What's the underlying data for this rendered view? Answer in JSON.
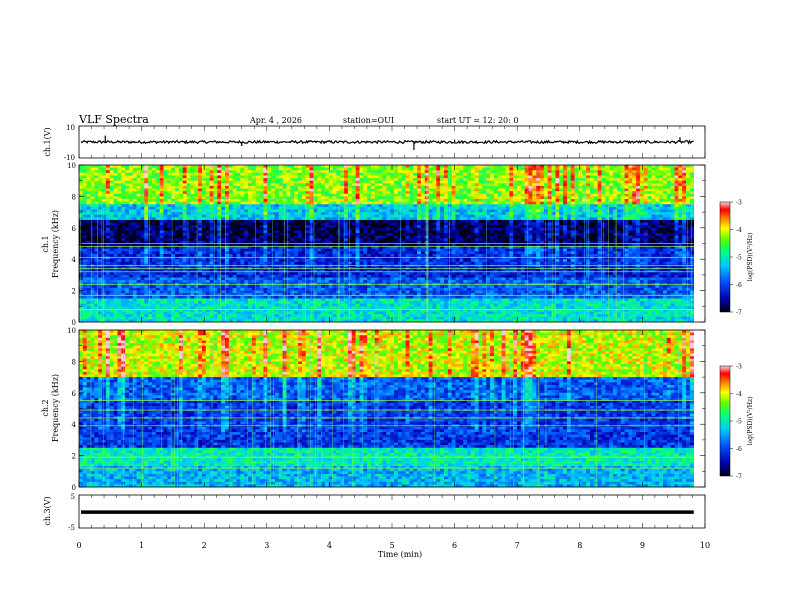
{
  "header": {
    "title": "VLF Spectra",
    "date": "Apr. 4 , 2026",
    "station": "station=OUI",
    "start_time": "start UT = 12: 20: 0"
  },
  "chart_data": [
    {
      "type": "line",
      "id": "ch1_waveform",
      "ylabel": "ch.1(V)",
      "ylim": [
        -10,
        10
      ],
      "y_tick_labels": [
        "10",
        "-10"
      ],
      "x_range": [
        0,
        10
      ],
      "baseline": 0,
      "noise_band": 0.8,
      "trace_end": 9.82,
      "spikes": [
        {
          "x": 0.42,
          "y": 4.0
        },
        {
          "x": 2.6,
          "y": -2.5
        },
        {
          "x": 5.35,
          "y": -5.0
        },
        {
          "x": 6.0,
          "y": 1.5
        },
        {
          "x": 9.6,
          "y": 3.0
        }
      ]
    },
    {
      "type": "heatmap",
      "id": "ch1_spectrogram",
      "ylabel": "ch.1",
      "ylabel2": "Frequency (kHz)",
      "ylim": [
        0,
        10
      ],
      "y_tick_labels": [
        "0",
        "2",
        "4",
        "6",
        "8",
        "10"
      ],
      "x_range": [
        0,
        9.82
      ],
      "colorbar": {
        "range": [
          -7,
          -3
        ],
        "tick_labels": [
          "-3",
          "-4",
          "-5",
          "-6",
          "-7"
        ],
        "label": "log(PSD)(V²/Hz)"
      },
      "bands": [
        {
          "fmin": 0,
          "fmax": 1.5,
          "level": -5.1
        },
        {
          "fmin": 1.5,
          "fmax": 2.8,
          "level": -5.9
        },
        {
          "fmin": 2.8,
          "fmax": 4.8,
          "level": -6.2
        },
        {
          "fmin": 4.8,
          "fmax": 6.5,
          "level": -6.8
        },
        {
          "fmin": 6.5,
          "fmax": 7.5,
          "level": -5.3
        },
        {
          "fmin": 7.5,
          "fmax": 10,
          "level": -4.3
        }
      ],
      "tones_khz": [
        0.8,
        1.7,
        2.4,
        3.2,
        3.4,
        3.6,
        4.1,
        4.8,
        5.0
      ]
    },
    {
      "type": "heatmap",
      "id": "ch2_spectrogram",
      "ylabel": "ch.2",
      "ylabel2": "Frequency (kHz)",
      "ylim": [
        0,
        10
      ],
      "y_tick_labels": [
        "0",
        "2",
        "4",
        "6",
        "8",
        "10"
      ],
      "x_range": [
        0,
        9.82
      ],
      "colorbar": {
        "range": [
          -7,
          -3
        ],
        "tick_labels": [
          "-3",
          "-4",
          "-5",
          "-6",
          "-7"
        ],
        "label": "log(PSD)(V²/Hz)"
      },
      "bands": [
        {
          "fmin": 0,
          "fmax": 1.4,
          "level": -5.4
        },
        {
          "fmin": 1.4,
          "fmax": 2.5,
          "level": -5.0
        },
        {
          "fmin": 2.5,
          "fmax": 5.5,
          "level": -6.1
        },
        {
          "fmin": 5.5,
          "fmax": 7.0,
          "level": -5.9
        },
        {
          "fmin": 7.0,
          "fmax": 10,
          "level": -4.1
        }
      ],
      "tones_khz": [
        1.2,
        1.9,
        3.9,
        4.4,
        4.9,
        5.5
      ]
    },
    {
      "type": "line",
      "id": "ch3_waveform",
      "ylabel": "ch.3(V)",
      "ylim": [
        -5,
        5
      ],
      "y_tick_labels": [
        "5",
        "-5"
      ],
      "x_range": [
        0,
        10
      ],
      "baseline": -0.2,
      "trace_end": 9.82
    }
  ],
  "x_axis": {
    "label": "Time (min)",
    "tick_labels": [
      "0",
      "1",
      "2",
      "3",
      "4",
      "5",
      "6",
      "7",
      "8",
      "9",
      "10"
    ]
  }
}
